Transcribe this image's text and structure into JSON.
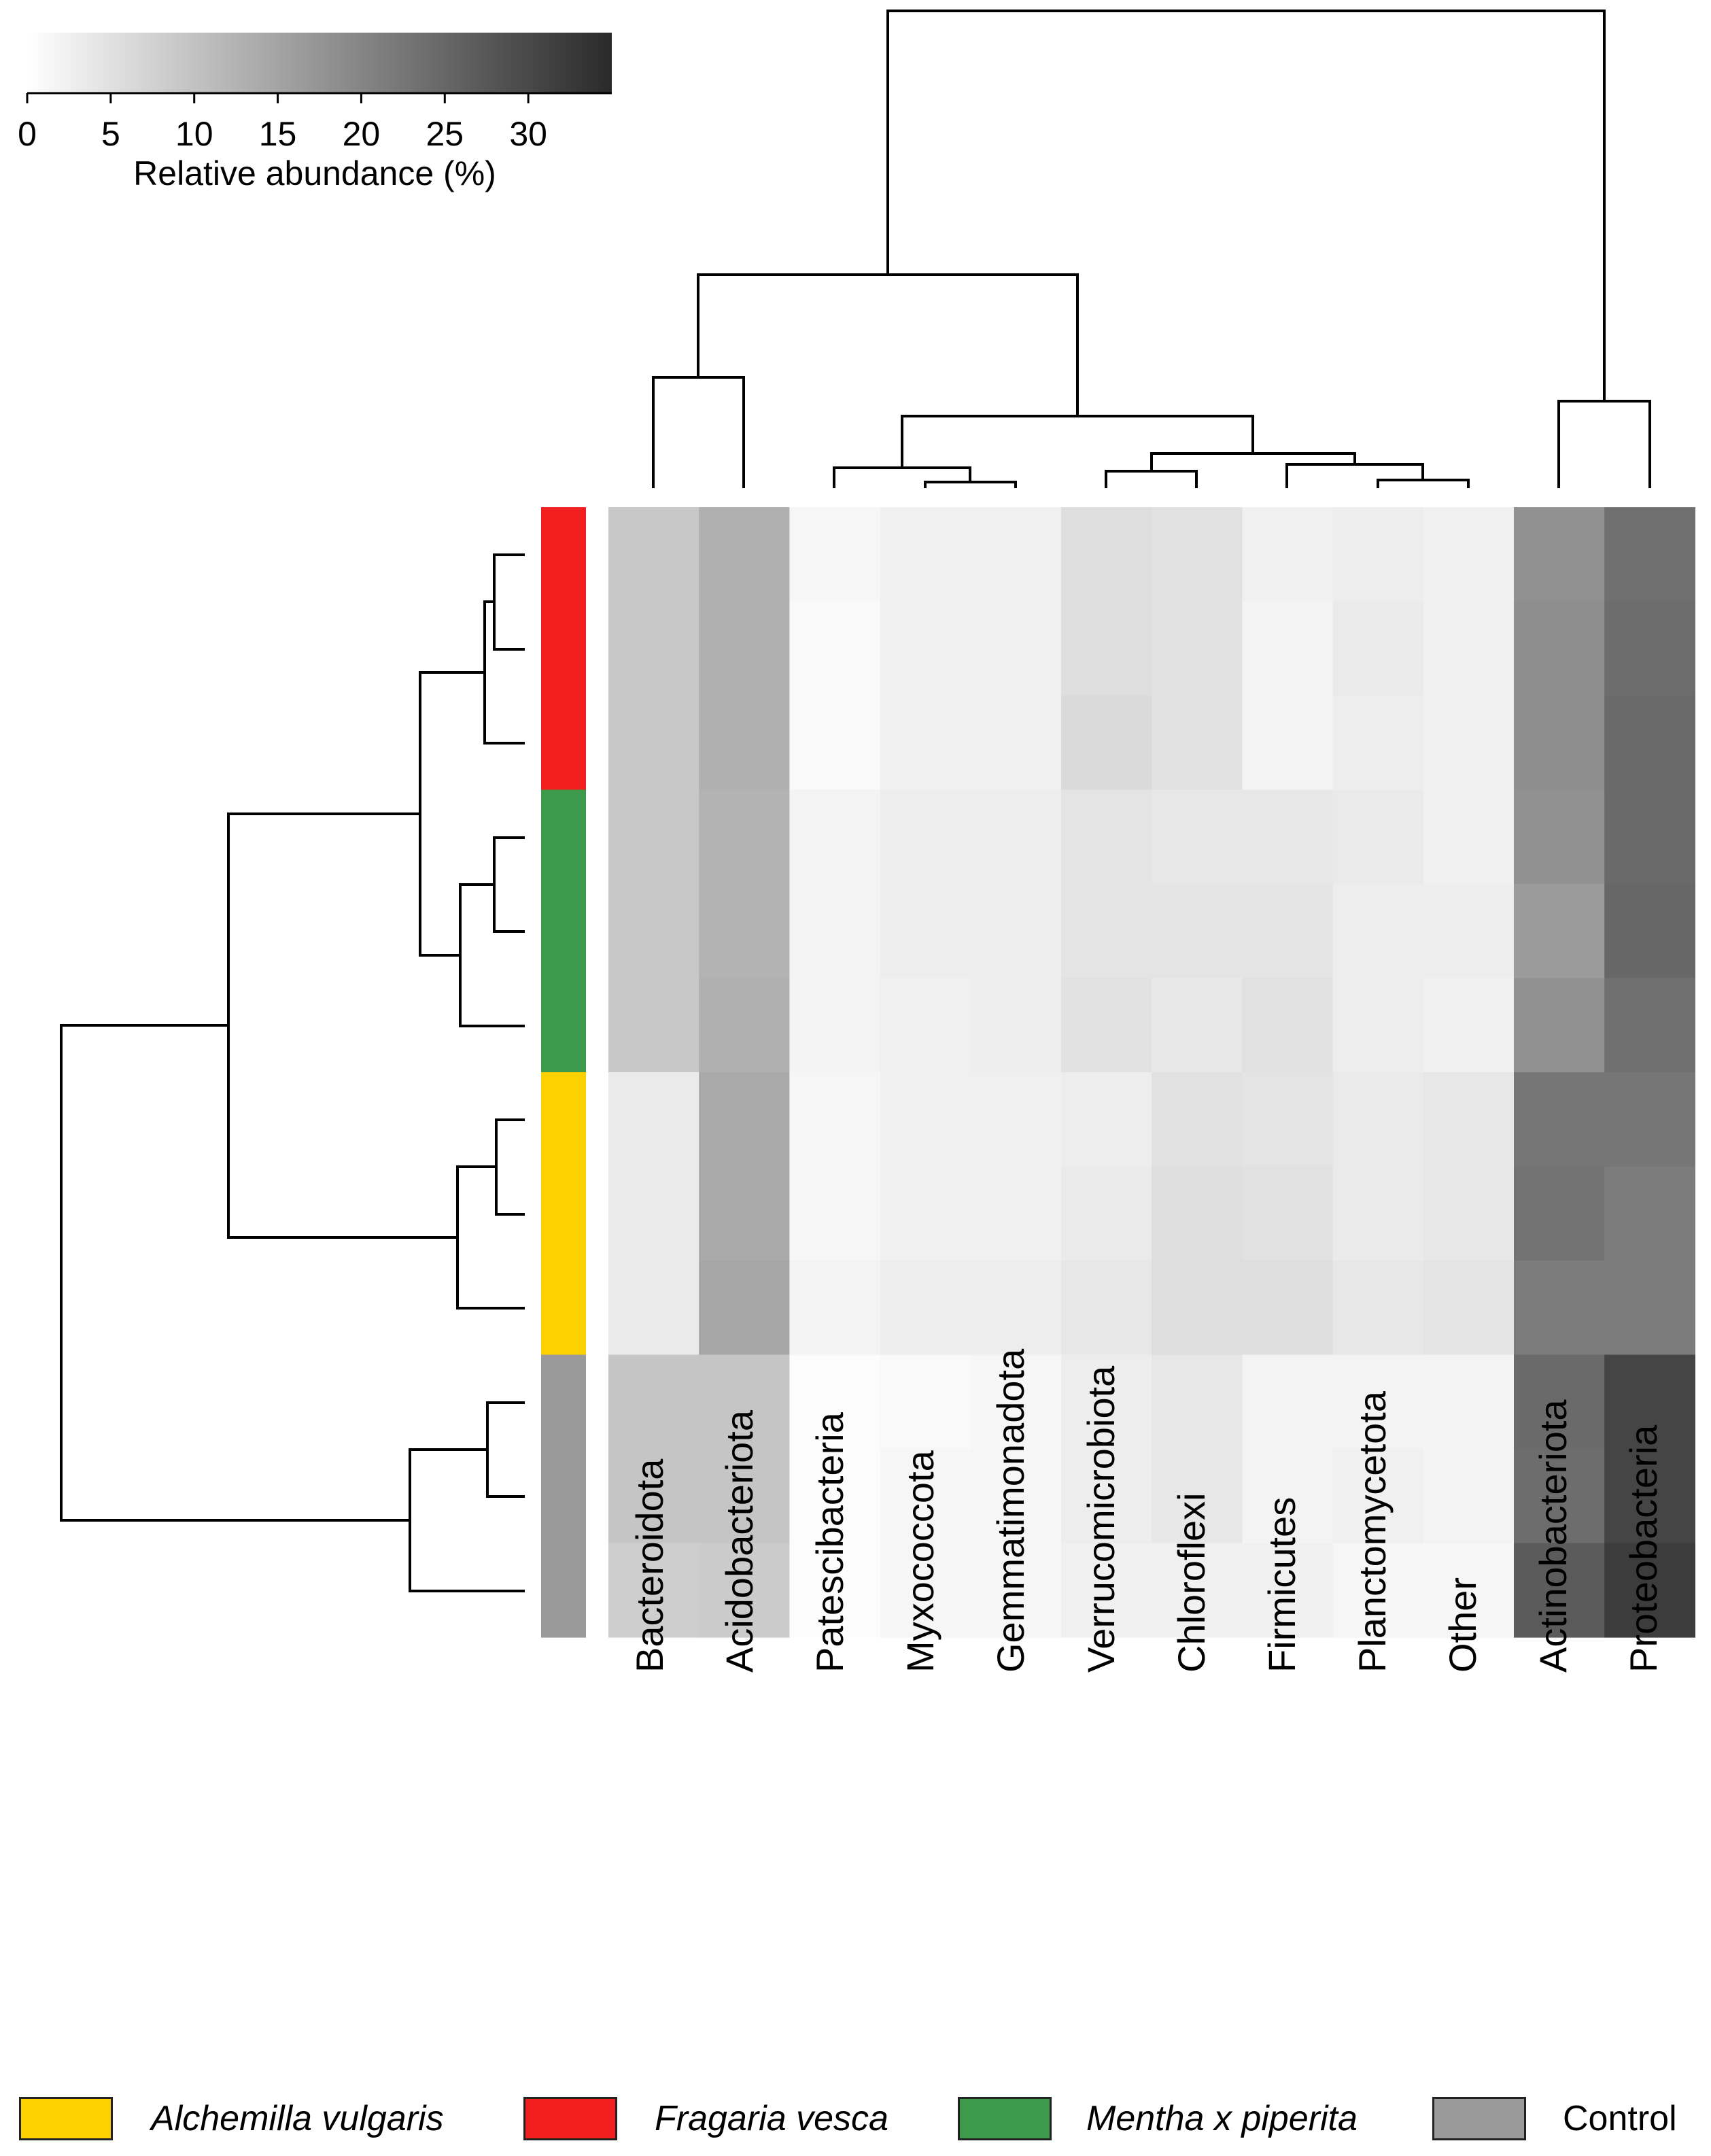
{
  "chart_data": {
    "type": "heatmap",
    "title": "",
    "colorbar": {
      "label": "Relative abundance (%)",
      "ticks": [
        0,
        5,
        10,
        15,
        20,
        25,
        30
      ],
      "tick_labels": [
        "0",
        "5",
        "10",
        "15",
        "20",
        "25",
        "30"
      ],
      "range": [
        0,
        35
      ],
      "color_low": "#ffffff",
      "color_high": "#2a2a2a"
    },
    "columns": [
      "Bacteroidota",
      "Acidobacteriota",
      "Patescibacteria",
      "Myxococcota",
      "Gemmatimonadota",
      "Verrucomicrobiota",
      "Chloroflexi",
      "Firmicutes",
      "Planctomycetota",
      "Other",
      "Actinobacteriota",
      "Proteobacteria"
    ],
    "row_groups": [
      "Fragaria vesca",
      "Fragaria vesca",
      "Fragaria vesca",
      "Mentha x piperita",
      "Mentha x piperita",
      "Mentha x piperita",
      "Alchemilla vulgaris",
      "Alchemilla vulgaris",
      "Alchemilla vulgaris",
      "Control",
      "Control",
      "Control"
    ],
    "values": [
      [
        9.0,
        13.0,
        1.5,
        2.5,
        2.5,
        5.5,
        5.0,
        2.5,
        3.0,
        2.5,
        18.0,
        23.5
      ],
      [
        9.0,
        13.0,
        1.0,
        2.5,
        2.5,
        5.5,
        5.0,
        2.0,
        3.5,
        2.5,
        18.5,
        24.0
      ],
      [
        9.0,
        13.0,
        1.0,
        2.5,
        2.5,
        6.0,
        5.0,
        2.0,
        3.0,
        2.5,
        18.5,
        24.5
      ],
      [
        9.0,
        12.5,
        2.0,
        3.0,
        3.0,
        4.5,
        4.0,
        4.0,
        3.5,
        2.5,
        18.0,
        24.5
      ],
      [
        9.0,
        12.5,
        2.0,
        3.0,
        3.0,
        4.5,
        4.5,
        4.5,
        3.0,
        3.0,
        16.5,
        25.0
      ],
      [
        9.0,
        13.0,
        2.0,
        2.5,
        3.0,
        5.0,
        4.0,
        5.0,
        3.0,
        2.5,
        18.0,
        23.5
      ],
      [
        3.5,
        14.0,
        1.5,
        2.5,
        2.5,
        3.0,
        5.0,
        4.5,
        3.5,
        4.0,
        22.5,
        22.5
      ],
      [
        3.5,
        14.0,
        1.5,
        2.5,
        2.5,
        3.5,
        5.5,
        5.0,
        3.5,
        4.0,
        23.0,
        21.5
      ],
      [
        3.5,
        14.5,
        2.0,
        3.0,
        3.0,
        4.0,
        5.5,
        5.5,
        4.0,
        4.5,
        21.5,
        21.5
      ],
      [
        9.5,
        9.5,
        0.5,
        1.0,
        1.5,
        3.0,
        4.0,
        2.0,
        2.0,
        2.0,
        24.5,
        30.5
      ],
      [
        9.5,
        9.5,
        0.5,
        1.5,
        1.5,
        3.0,
        4.0,
        2.0,
        2.5,
        2.0,
        24.0,
        30.5
      ],
      [
        8.0,
        8.5,
        0.5,
        1.5,
        1.5,
        2.5,
        2.5,
        2.5,
        1.5,
        1.5,
        27.0,
        32.0
      ]
    ],
    "row_dendrogram": true,
    "column_dendrogram": true,
    "legend": {
      "placement": "bottom",
      "items": [
        {
          "label": "Alchemilla vulgaris",
          "color": "#fdd000",
          "italic": true
        },
        {
          "label": "Fragaria vesca",
          "color": "#f01e1e",
          "italic": true
        },
        {
          "label": "Mentha x piperita",
          "color": "#3d9a4d",
          "italic": true
        },
        {
          "label": "Control",
          "color": "#9a9a9a",
          "italic": false
        }
      ]
    }
  }
}
